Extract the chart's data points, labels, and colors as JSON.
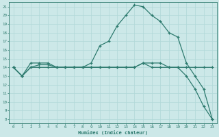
{
  "title": "",
  "xlabel": "Humidex (Indice chaleur)",
  "bg_color": "#cce8e8",
  "line_color": "#2d7a6e",
  "grid_color": "#b0d8d8",
  "spine_color": "#2d7a6e",
  "xlim": [
    -0.5,
    23.5
  ],
  "ylim": [
    7.5,
    21.5
  ],
  "xticks": [
    0,
    1,
    2,
    3,
    4,
    5,
    6,
    7,
    8,
    9,
    10,
    11,
    12,
    13,
    14,
    15,
    16,
    17,
    18,
    19,
    20,
    21,
    22,
    23
  ],
  "yticks": [
    8,
    9,
    10,
    11,
    12,
    13,
    14,
    15,
    16,
    17,
    18,
    19,
    20,
    21
  ],
  "line1_x": [
    0,
    1,
    2,
    3,
    4,
    5,
    6,
    7,
    8,
    9,
    10,
    11,
    12,
    13,
    14,
    15,
    16,
    17,
    18,
    19,
    20,
    21,
    22,
    23
  ],
  "line1_y": [
    14,
    13,
    14,
    14.3,
    14.3,
    14,
    14,
    14,
    14,
    14,
    14,
    14,
    14,
    14,
    14,
    14.5,
    14,
    14,
    14,
    14,
    14,
    14,
    14,
    14
  ],
  "line2_x": [
    0,
    1,
    2,
    3,
    4,
    5,
    6,
    7,
    8,
    9,
    10,
    11,
    12,
    13,
    14,
    15,
    16,
    17,
    18,
    19,
    20,
    21,
    22,
    23
  ],
  "line2_y": [
    14,
    13,
    14.5,
    14.5,
    14.5,
    14,
    14,
    14,
    14,
    14.5,
    16.5,
    17,
    18.8,
    20,
    21.2,
    21,
    20,
    19.3,
    18,
    17.5,
    14.5,
    13,
    11.5,
    8
  ],
  "line3_x": [
    0,
    1,
    2,
    3,
    4,
    5,
    6,
    7,
    8,
    9,
    10,
    11,
    12,
    13,
    14,
    15,
    16,
    17,
    18,
    19,
    20,
    21,
    22,
    23
  ],
  "line3_y": [
    14,
    13,
    14,
    14,
    14,
    14,
    14,
    14,
    14,
    14,
    14,
    14,
    14,
    14,
    14,
    14.5,
    14.5,
    14.5,
    14,
    14,
    13,
    11.5,
    9.5,
    8
  ]
}
